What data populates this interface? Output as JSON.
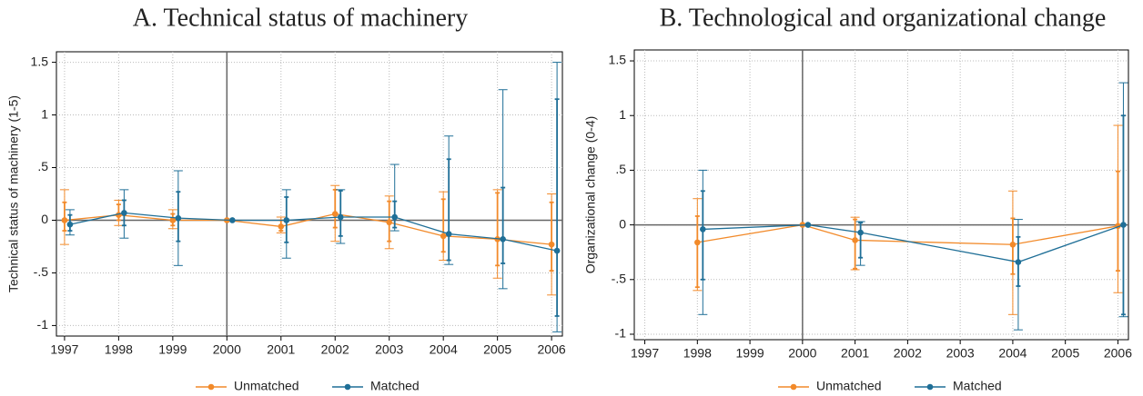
{
  "chart_data": [
    {
      "type": "line",
      "title": "A. Technical status of machinery",
      "y_label": "Technical status of machinery (1-5)",
      "x": [
        1997,
        1998,
        1999,
        2000,
        2001,
        2002,
        2003,
        2004,
        2005,
        2006
      ],
      "xlim": [
        1996.85,
        2006.2
      ],
      "xticks": [
        1997,
        1998,
        1999,
        2000,
        2001,
        2002,
        2003,
        2004,
        2005,
        2006
      ],
      "ylim": [
        -1.1,
        1.6
      ],
      "yticks": [
        {
          "value": -1,
          "label": "-1"
        },
        {
          "value": -0.5,
          "label": "-.5"
        },
        0,
        {
          "value": 0.5,
          "label": ".5"
        },
        1,
        1.5
      ],
      "reference_x": 2000,
      "reference_y": 0,
      "grid": true,
      "series": [
        {
          "name": "Unmatched",
          "color": "#f28a2a",
          "values": [
            0.0,
            0.05,
            0.0,
            0.0,
            -0.06,
            0.06,
            -0.02,
            -0.15,
            -0.18,
            -0.23
          ],
          "ci_outer": [
            [
              -0.23,
              0.29
            ],
            [
              -0.05,
              0.19
            ],
            [
              -0.08,
              0.1
            ],
            null,
            [
              -0.12,
              0.03
            ],
            [
              -0.2,
              0.33
            ],
            [
              -0.27,
              0.23
            ],
            [
              -0.38,
              0.27
            ],
            [
              -0.55,
              0.29
            ],
            [
              -0.71,
              0.25
            ]
          ],
          "ci_inner": [
            [
              -0.1,
              0.17
            ],
            [
              0.0,
              0.15
            ],
            [
              -0.05,
              0.06
            ],
            null,
            [
              -0.1,
              0.0
            ],
            [
              -0.07,
              0.29
            ],
            [
              -0.2,
              0.18
            ],
            [
              -0.3,
              0.2
            ],
            [
              -0.43,
              0.26
            ],
            [
              -0.48,
              0.17
            ]
          ]
        },
        {
          "name": "Matched",
          "color": "#1f6f97",
          "values": [
            -0.04,
            0.07,
            0.02,
            0.0,
            0.0,
            0.03,
            0.03,
            -0.13,
            -0.18,
            -0.29
          ],
          "ci_outer": [
            [
              -0.14,
              0.1
            ],
            [
              -0.17,
              0.29
            ],
            [
              -0.43,
              0.47
            ],
            null,
            [
              -0.36,
              0.29
            ],
            [
              -0.22,
              0.29
            ],
            [
              -0.1,
              0.53
            ],
            [
              -0.42,
              0.8
            ],
            [
              -0.65,
              1.24
            ],
            [
              -1.06,
              1.5
            ]
          ],
          "ci_inner": [
            [
              -0.1,
              0.05
            ],
            [
              -0.05,
              0.19
            ],
            [
              -0.2,
              0.27
            ],
            null,
            [
              -0.21,
              0.22
            ],
            [
              -0.15,
              0.28
            ],
            [
              -0.07,
              0.18
            ],
            [
              -0.38,
              0.58
            ],
            [
              -0.41,
              0.31
            ],
            [
              -0.91,
              1.15
            ]
          ]
        }
      ]
    },
    {
      "type": "line",
      "title": "B. Technological and organizational change",
      "y_label": "Organizational change (0-4)",
      "x": [
        1998,
        2000,
        2001,
        2004,
        2006
      ],
      "xlim": [
        1996.8,
        2006.2
      ],
      "xticks": [
        1997,
        1998,
        1999,
        2000,
        2001,
        2002,
        2003,
        2004,
        2005,
        2006
      ],
      "ylim": [
        -1.05,
        1.6
      ],
      "yticks": [
        {
          "value": -1,
          "label": "-1"
        },
        {
          "value": -0.5,
          "label": "-.5"
        },
        0,
        {
          "value": 0.5,
          "label": ".5"
        },
        1,
        1.5
      ],
      "reference_x": 2000,
      "reference_y": 0,
      "grid": true,
      "series": [
        {
          "name": "Unmatched",
          "color": "#f28a2a",
          "values": [
            -0.16,
            0.0,
            -0.14,
            -0.18,
            -0.01
          ],
          "ci_outer": [
            [
              -0.6,
              0.24
            ],
            null,
            [
              -0.41,
              0.07
            ],
            [
              -0.82,
              0.31
            ],
            [
              -0.62,
              0.91
            ]
          ],
          "ci_inner": [
            [
              -0.57,
              0.08
            ],
            null,
            [
              -0.4,
              0.05
            ],
            [
              -0.45,
              0.06
            ],
            [
              -0.42,
              0.49
            ]
          ]
        },
        {
          "name": "Matched",
          "color": "#1f6f97",
          "values": [
            -0.04,
            0.0,
            -0.07,
            -0.34,
            0.0
          ],
          "ci_outer": [
            [
              -0.82,
              0.5
            ],
            null,
            [
              -0.37,
              0.03
            ],
            [
              -0.96,
              0.05
            ],
            [
              -0.84,
              1.3
            ]
          ],
          "ci_inner": [
            [
              -0.5,
              0.31
            ],
            null,
            [
              -0.3,
              0.02
            ],
            [
              -0.56,
              -0.11
            ],
            [
              -0.82,
              1.0
            ]
          ]
        }
      ]
    }
  ]
}
